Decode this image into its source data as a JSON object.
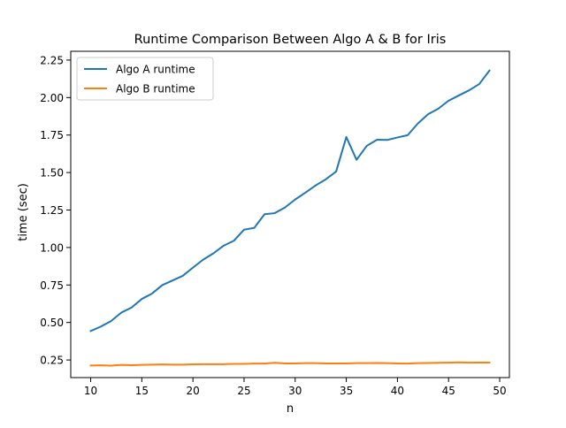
{
  "chart_data": {
    "type": "line",
    "title": "Runtime Comparison Between Algo A & B for Iris",
    "xlabel": "n",
    "ylabel": "time (sec)",
    "xlim": [
      8.05,
      50.95
    ],
    "ylim": [
      0.1325,
      2.3085
    ],
    "x_ticks": [
      10,
      15,
      20,
      25,
      30,
      35,
      40,
      45,
      50
    ],
    "y_ticks": [
      0.25,
      0.5,
      0.75,
      1.0,
      1.25,
      1.5,
      1.75,
      2.0,
      2.25
    ],
    "x_tick_labels": [
      "10",
      "15",
      "20",
      "25",
      "30",
      "35",
      "40",
      "45",
      "50"
    ],
    "y_tick_labels": [
      "0.25",
      "0.50",
      "0.75",
      "1.00",
      "1.25",
      "1.50",
      "1.75",
      "2.00",
      "2.25"
    ],
    "grid": false,
    "legend_position": "top-left",
    "x": [
      10,
      11,
      12,
      13,
      14,
      15,
      16,
      17,
      18,
      19,
      20,
      21,
      22,
      23,
      24,
      25,
      26,
      27,
      28,
      29,
      30,
      31,
      32,
      33,
      34,
      35,
      36,
      37,
      38,
      39,
      40,
      41,
      42,
      43,
      44,
      45,
      46,
      47,
      48,
      49
    ],
    "series": [
      {
        "name": "Algo A runtime",
        "color": "#1f77b4",
        "values": [
          0.443,
          0.473,
          0.51,
          0.566,
          0.6,
          0.657,
          0.693,
          0.749,
          0.78,
          0.811,
          0.866,
          0.919,
          0.961,
          1.012,
          1.045,
          1.119,
          1.131,
          1.222,
          1.229,
          1.267,
          1.32,
          1.366,
          1.414,
          1.455,
          1.506,
          1.737,
          1.585,
          1.678,
          1.719,
          1.717,
          1.734,
          1.749,
          1.827,
          1.889,
          1.926,
          1.979,
          2.014,
          2.048,
          2.09,
          2.18
        ]
      },
      {
        "name": "Algo B runtime",
        "color": "#ff7f0e",
        "values": [
          0.213,
          0.214,
          0.212,
          0.217,
          0.215,
          0.217,
          0.219,
          0.22,
          0.219,
          0.219,
          0.221,
          0.222,
          0.222,
          0.222,
          0.224,
          0.224,
          0.226,
          0.226,
          0.231,
          0.227,
          0.227,
          0.229,
          0.229,
          0.227,
          0.227,
          0.227,
          0.229,
          0.229,
          0.23,
          0.229,
          0.227,
          0.226,
          0.229,
          0.23,
          0.231,
          0.232,
          0.234,
          0.232,
          0.233,
          0.233
        ]
      }
    ]
  }
}
